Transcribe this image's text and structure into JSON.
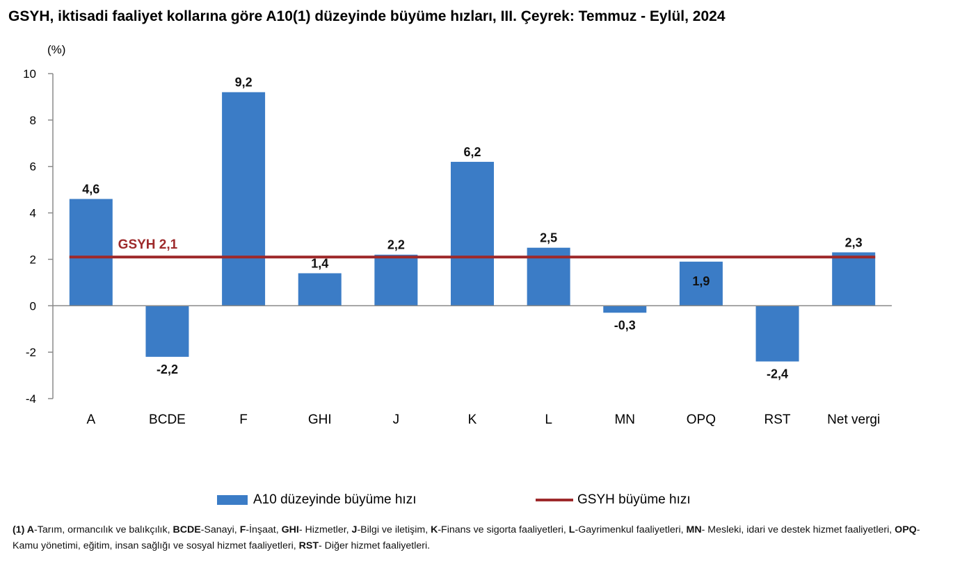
{
  "title": "GSYH, iktisadi faaliyet kollarına göre A10(1) düzeyinde büyüme hızları, III. Çeyrek: Temmuz - Eylül, 2024",
  "chart_data": {
    "type": "bar",
    "ylabel": "(%)",
    "categories": [
      "A",
      "BCDE",
      "F",
      "GHI",
      "J",
      "K",
      "L",
      "MN",
      "OPQ",
      "RST",
      "Net vergi"
    ],
    "series": [
      {
        "name": "A10 düzeyinde büyüme hızı",
        "values": [
          4.6,
          -2.2,
          9.2,
          1.4,
          2.2,
          6.2,
          2.5,
          -0.3,
          1.9,
          -2.4,
          2.3
        ],
        "labels": [
          "4,6",
          "-2,2",
          "9,2",
          "1,4",
          "2,2",
          "6,2",
          "2,5",
          "-0,3",
          "1,9",
          "-2,4",
          "2,3"
        ],
        "color": "#3b7cc6"
      }
    ],
    "reference_line": {
      "name": "GSYH büyüme hızı",
      "value": 2.1,
      "label": "GSYH 2,1",
      "color": "#9e2a2b"
    },
    "ylim": [
      -4,
      10
    ],
    "yticks": [
      10,
      8,
      6,
      4,
      2,
      0,
      -2,
      -4
    ],
    "grid": false,
    "legend_position": "bottom"
  },
  "legend": {
    "bar_label": "A10 düzeyinde büyüme hızı",
    "line_label": "GSYH büyüme hızı"
  },
  "footnote": [
    {
      "key": "(1) A",
      "text": "-Tarım, ormancılık ve balıkçılık, "
    },
    {
      "key": "BCDE",
      "text": "-Sanayi, "
    },
    {
      "key": "F",
      "text": "-İnşaat, "
    },
    {
      "key": "GHI",
      "text": "- Hizmetler, "
    },
    {
      "key": "J",
      "text": "-Bilgi ve iletişim, "
    },
    {
      "key": "K",
      "text": "-Finans ve sigorta faaliyetleri, "
    },
    {
      "key": "L",
      "text": "-Gayrimenkul faaliyetleri, "
    },
    {
      "key": "MN",
      "text": "- Mesleki, idari ve destek hizmet faaliyetleri, "
    },
    {
      "key": "OPQ",
      "text": "- Kamu yönetimi, eğitim, insan sağlığı ve sosyal hizmet faaliyetleri, "
    },
    {
      "key": "RST",
      "text": "- Diğer hizmet faaliyetleri."
    }
  ]
}
